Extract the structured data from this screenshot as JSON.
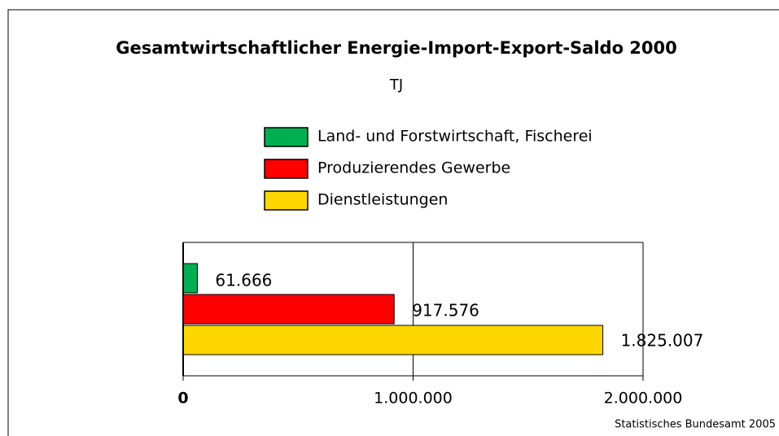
{
  "chart_data": {
    "type": "bar",
    "orientation": "horizontal",
    "title": "Gesamtwirtschaftlicher Energie-Import-Export-Saldo 2000",
    "subtitle": "TJ",
    "categories": [
      null
    ],
    "series": [
      {
        "name": "Land- und Forstwirtschaft, Fischerei",
        "color": "#00b050",
        "values": [
          61666
        ],
        "value_labels": [
          "61.666"
        ]
      },
      {
        "name": "Produzierendes Gewerbe",
        "color": "#ff0000",
        "values": [
          917576
        ],
        "value_labels": [
          "917.576"
        ]
      },
      {
        "name": "Dienstleistungen",
        "color": "#ffd700",
        "values": [
          1825007
        ],
        "value_labels": [
          "1.825.007"
        ]
      }
    ],
    "xlim": [
      0,
      2000000
    ],
    "xticks": [
      0,
      {
        "value": 1000000,
        "label": "1.000.000"
      },
      {
        "value": 2000000,
        "label": "2.000.000"
      }
    ],
    "grid": true,
    "legend": "top",
    "source": "Statistisches Bundesamt 2005"
  }
}
